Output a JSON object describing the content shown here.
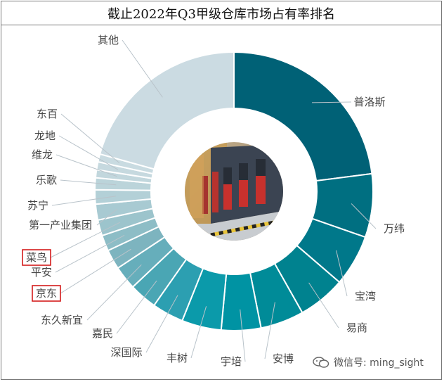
{
  "watermark": {
    "text": "微信号: ming_sight"
  },
  "colors": {
    "leader": "#b9c3ca",
    "label": "#444444",
    "highlight": "#d41c1c"
  },
  "chart_data": {
    "type": "pie",
    "variant": "donut",
    "title": "截止2022年Q3甲级仓库市场占有率排名",
    "center_image": "warehouse-photo",
    "series": [
      {
        "slices": [
          {
            "label": "普洛斯",
            "value": 25.0,
            "color": "#006176"
          },
          {
            "label": "万纬",
            "value": 8.0,
            "color": "#006f81"
          },
          {
            "label": "宝湾",
            "value": 6.5,
            "color": "#00788a"
          },
          {
            "label": "易商",
            "value": 6.0,
            "color": "#00828f"
          },
          {
            "label": "安博",
            "value": 5.5,
            "color": "#008b98"
          },
          {
            "label": "宇培",
            "value": 5.0,
            "color": "#0093a3"
          },
          {
            "label": "丰树",
            "value": 5.0,
            "color": "#0b9aaa"
          },
          {
            "label": "深国际",
            "value": 4.0,
            "color": "#2c9fb1"
          },
          {
            "label": "嘉民",
            "value": 3.5,
            "color": "#4aa6b4"
          },
          {
            "label": "东久新宜",
            "value": 3.0,
            "color": "#66aebb"
          },
          {
            "label": "京东",
            "value": 2.5,
            "color": "#7db4bf",
            "highlight": true
          },
          {
            "label": "平安",
            "value": 2.0,
            "color": "#8dbdc6"
          },
          {
            "label": "菜鸟",
            "value": 2.0,
            "color": "#9cc4cc",
            "highlight": true
          },
          {
            "label": "第一产业集团",
            "value": 2.0,
            "color": "#a8cad2"
          },
          {
            "label": "苏宁",
            "value": 1.8,
            "color": "#b3d0d7"
          },
          {
            "label": "乐歌",
            "value": 1.5,
            "color": "#bbd4da"
          },
          {
            "label": "维龙",
            "value": 1.0,
            "color": "#c2d7dd"
          },
          {
            "label": "龙地",
            "value": 1.0,
            "color": "#c6d9df"
          },
          {
            "label": "东百",
            "value": 1.0,
            "color": "#c9dbe1"
          },
          {
            "label": "其他",
            "value": 22.5,
            "color": "#cbdbe2"
          }
        ]
      }
    ]
  }
}
